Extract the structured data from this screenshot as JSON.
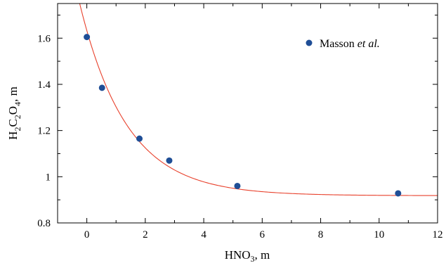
{
  "chart_data": {
    "type": "scatter",
    "title": "",
    "xlabel": {
      "base": "HNO",
      "sub": "3",
      "unit": ", m"
    },
    "ylabel": {
      "parts": [
        {
          "text": "H",
          "sub": false
        },
        {
          "text": "2",
          "sub": true
        },
        {
          "text": "C",
          "sub": false
        },
        {
          "text": "2",
          "sub": true
        },
        {
          "text": "O",
          "sub": false
        },
        {
          "text": "4",
          "sub": true
        },
        {
          "text": ", m",
          "sub": false
        }
      ]
    },
    "xlim": [
      -1,
      12
    ],
    "ylim": [
      0.8,
      1.75
    ],
    "x_ticks": [
      0,
      2,
      4,
      6,
      8,
      10,
      12
    ],
    "x_tick_labels": [
      "0",
      "2",
      "4",
      "6",
      "8",
      "10",
      "12"
    ],
    "y_ticks": [
      0.8,
      1.0,
      1.2,
      1.4,
      1.6
    ],
    "y_tick_labels": [
      "0.8",
      "1",
      "1.2",
      "1.4",
      "1.6"
    ],
    "grid": false,
    "legend": {
      "placement": "top-right",
      "name": "Masson",
      "name_suffix": "et al."
    },
    "series": [
      {
        "name": "Masson et al.",
        "type": "scatter",
        "color": "#1f4e96",
        "x": [
          0.0,
          0.52,
          1.8,
          2.82,
          5.15,
          10.65
        ],
        "y": [
          1.605,
          1.385,
          1.165,
          1.07,
          0.96,
          0.928
        ]
      },
      {
        "type": "line",
        "color": "#e8412c",
        "fit": {
          "form": "a + b*exp(-c*x)",
          "a": 0.918,
          "b": 0.715,
          "c": 0.62
        },
        "x_range": [
          -0.4,
          12
        ]
      }
    ]
  }
}
